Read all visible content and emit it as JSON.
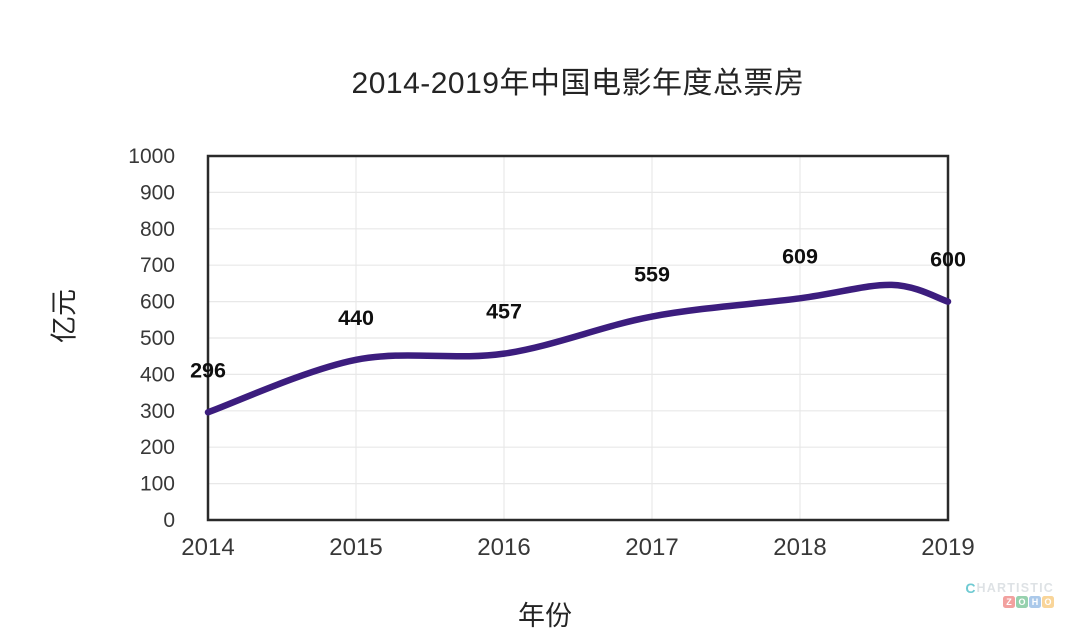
{
  "chart_data": {
    "type": "line",
    "title": "2014-2019年中国电影年度总票房",
    "xlabel": "年份",
    "ylabel": "亿元",
    "categories": [
      "2014",
      "2015",
      "2016",
      "2017",
      "2018",
      "2019"
    ],
    "values": [
      296,
      440,
      457,
      559,
      609,
      600
    ],
    "ylim": [
      0,
      1000
    ],
    "yticks": [
      0,
      100,
      200,
      300,
      400,
      500,
      600,
      700,
      800,
      900,
      1000
    ],
    "grid": true,
    "legend_position": "none",
    "smooth": true,
    "line_color": "#3c1d7e",
    "grid_color": "#e8e8e8",
    "border_color": "#2a2a2a",
    "tick_color": "#383838",
    "data_label_color": "#0f0f0f"
  },
  "watermark": {
    "logo_letter": "C",
    "brand": "HARTISTIC",
    "zoho": [
      {
        "letter": "Z",
        "color": "#e2342f"
      },
      {
        "letter": "O",
        "color": "#1d9b4f"
      },
      {
        "letter": "H",
        "color": "#4a8cd2"
      },
      {
        "letter": "O",
        "color": "#f2a324"
      }
    ]
  }
}
